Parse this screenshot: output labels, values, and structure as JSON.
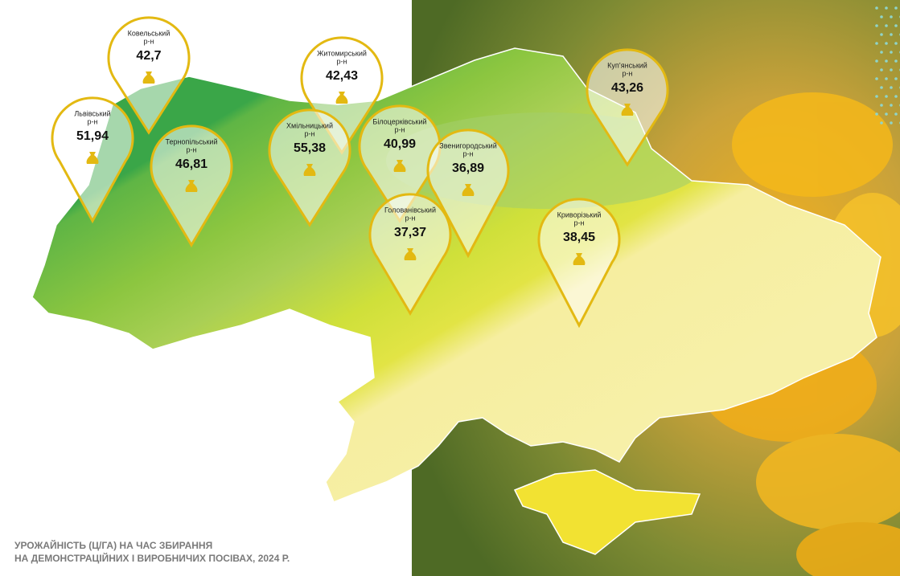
{
  "title_lines": [
    "УРОЖАЙНІСТЬ (Ц/ГА) НА ЧАС ЗБИРАННЯ",
    "НА ДЕМОНСТРАЦІЙНИХ І ВИРОБНИЧИХ ПОСІВАХ, 2024 Р."
  ],
  "pins": [
    {
      "name": "Ковельський",
      "unit": "р-н",
      "value": "42,7"
    },
    {
      "name": "Львівський",
      "unit": "р-н",
      "value": "51,94"
    },
    {
      "name": "Тернопільський",
      "unit": "р-н",
      "value": "46,81"
    },
    {
      "name": "Житомирський",
      "unit": "р-н",
      "value": "42,43"
    },
    {
      "name": "Хмільницький",
      "unit": "р-н",
      "value": "55,38"
    },
    {
      "name": "Білоцерківський",
      "unit": "р-н",
      "value": "40,99"
    },
    {
      "name": "Звенигородський",
      "unit": "р-н",
      "value": "36,89"
    },
    {
      "name": "Голованівський",
      "unit": "р-н",
      "value": "37,37"
    },
    {
      "name": "Криворізький",
      "unit": "р-н",
      "value": "38,45"
    },
    {
      "name": "Куп’янський",
      "unit": "р-н",
      "value": "43,26"
    }
  ]
}
